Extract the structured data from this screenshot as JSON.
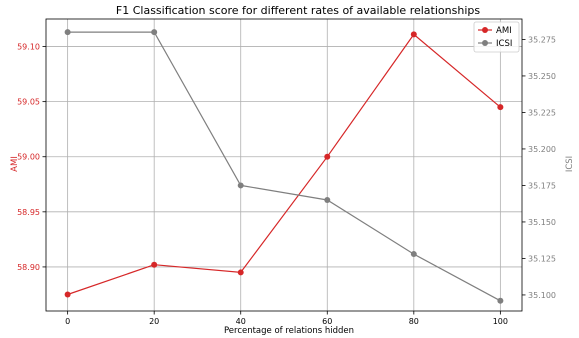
{
  "chart_data": {
    "type": "line",
    "title": "F1 Classification score for different rates of available relationships",
    "xlabel": "Percentage of relations hidden",
    "ylabel_left": "AMI",
    "ylabel_right": "ICSI",
    "x": [
      0,
      20,
      40,
      60,
      80,
      100
    ],
    "xlim": [
      -5,
      105
    ],
    "xticks": [
      0,
      20,
      40,
      60,
      80,
      100
    ],
    "ylim_left": [
      58.86,
      59.125
    ],
    "yticks_left": [
      58.9,
      58.95,
      59.0,
      59.05,
      59.1
    ],
    "ytick_labels_left": [
      "58.90",
      "58.95",
      "59.00",
      "59.05",
      "59.10"
    ],
    "ylim_right": [
      35.089,
      35.289
    ],
    "yticks_right": [
      35.1,
      35.125,
      35.15,
      35.175,
      35.2,
      35.225,
      35.25,
      35.275
    ],
    "ytick_labels_right": [
      "35.100",
      "35.125",
      "35.150",
      "35.175",
      "35.200",
      "35.225",
      "35.250",
      "35.275"
    ],
    "grid": true,
    "legend_position": "top-right",
    "series": [
      {
        "name": "AMI",
        "axis": "left",
        "color": "#d62728",
        "values": [
          58.875,
          58.902,
          58.895,
          59.0,
          59.111,
          59.045
        ]
      },
      {
        "name": "ICSI",
        "axis": "right",
        "color": "#7f7f7f",
        "values": [
          35.28,
          35.28,
          35.175,
          35.165,
          35.128,
          35.096
        ]
      }
    ]
  }
}
